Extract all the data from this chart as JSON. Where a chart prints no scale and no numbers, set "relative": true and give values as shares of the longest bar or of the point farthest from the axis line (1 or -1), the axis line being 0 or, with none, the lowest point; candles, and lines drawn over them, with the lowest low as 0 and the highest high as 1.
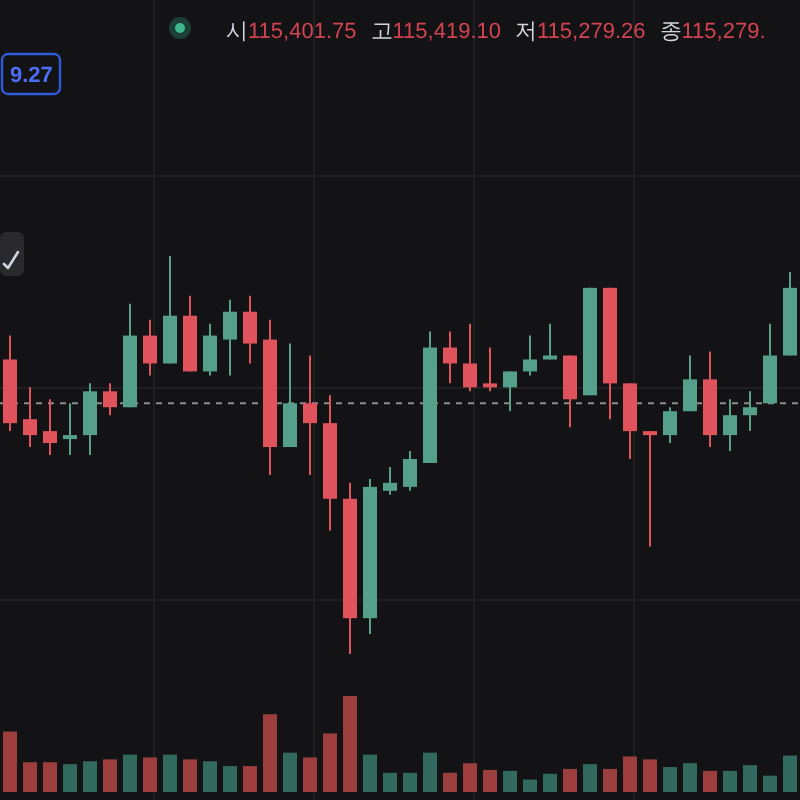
{
  "chart_data": [
    {
      "type": "candlestick",
      "relative": true,
      "grid": true,
      "categories": [
        null,
        null,
        null,
        null,
        null,
        null,
        null,
        null,
        null,
        null,
        null,
        null,
        null,
        null,
        null,
        null,
        null,
        null,
        null,
        null,
        null,
        null,
        null,
        null,
        null,
        null,
        null,
        null,
        null,
        null,
        null,
        null,
        null,
        null,
        null,
        null,
        null,
        null,
        null,
        null
      ],
      "annotations": [
        "시115,401.75",
        "고115,419.10",
        "저115,279.26",
        "종115,279.",
        "9.27"
      ],
      "ref_lines": [
        {
          "axis": "y",
          "value": 0.63,
          "color": "#8c8c8c",
          "line_style": "dashed"
        }
      ],
      "ohlc": [
        [
          0.74,
          0.8,
          0.56,
          0.58
        ],
        [
          0.59,
          0.67,
          0.52,
          0.55
        ],
        [
          0.56,
          0.64,
          0.5,
          0.53
        ],
        [
          0.54,
          0.63,
          0.5,
          0.55
        ],
        [
          0.55,
          0.68,
          0.5,
          0.66
        ],
        [
          0.66,
          0.68,
          0.6,
          0.62
        ],
        [
          0.62,
          0.88,
          0.62,
          0.8
        ],
        [
          0.8,
          0.84,
          0.7,
          0.73
        ],
        [
          0.73,
          1.0,
          0.73,
          0.85
        ],
        [
          0.85,
          0.9,
          0.71,
          0.71
        ],
        [
          0.71,
          0.83,
          0.7,
          0.8
        ],
        [
          0.79,
          0.89,
          0.7,
          0.86
        ],
        [
          0.86,
          0.9,
          0.73,
          0.78
        ],
        [
          0.79,
          0.84,
          0.45,
          0.52
        ],
        [
          0.52,
          0.78,
          0.52,
          0.63
        ],
        [
          0.63,
          0.75,
          0.45,
          0.58
        ],
        [
          0.58,
          0.65,
          0.31,
          0.39
        ],
        [
          0.39,
          0.43,
          0,
          0.09
        ],
        [
          0.09,
          0.44,
          0.05,
          0.42
        ],
        [
          0.41,
          0.47,
          0.4,
          0.43
        ],
        [
          0.42,
          0.51,
          0.41,
          0.49
        ],
        [
          0.48,
          0.81,
          0.48,
          0.77
        ],
        [
          0.77,
          0.81,
          0.68,
          0.73
        ],
        [
          0.73,
          0.83,
          0.66,
          0.67
        ],
        [
          0.68,
          0.77,
          0.66,
          0.67
        ],
        [
          0.67,
          0.71,
          0.61,
          0.71
        ],
        [
          0.71,
          0.8,
          0.7,
          0.74
        ],
        [
          0.74,
          0.83,
          0.74,
          0.75
        ],
        [
          0.75,
          0.75,
          0.57,
          0.64
        ],
        [
          0.65,
          0.92,
          0.65,
          0.92
        ],
        [
          0.92,
          0.92,
          0.59,
          0.68
        ],
        [
          0.68,
          0.68,
          0.49,
          0.56
        ],
        [
          0.56,
          0.56,
          0.27,
          0.55
        ],
        [
          0.55,
          0.62,
          0.53,
          0.61
        ],
        [
          0.61,
          0.75,
          0.61,
          0.69
        ],
        [
          0.69,
          0.76,
          0.52,
          0.55
        ],
        [
          0.55,
          0.64,
          0.51,
          0.6
        ],
        [
          0.6,
          0.66,
          0.56,
          0.62
        ],
        [
          0.63,
          0.83,
          0.63,
          0.75
        ],
        [
          0.75,
          0.96,
          0.75,
          0.92
        ]
      ],
      "colors": [
        "#e0525c",
        "#e0525c",
        "#e0525c",
        "#55a08b",
        "#55a08b",
        "#e0525c",
        "#55a08b",
        "#e0525c",
        "#55a08b",
        "#e0525c",
        "#55a08b",
        "#55a08b",
        "#e0525c",
        "#e0525c",
        "#55a08b",
        "#e0525c",
        "#e0525c",
        "#e0525c",
        "#55a08b",
        "#55a08b",
        "#55a08b",
        "#55a08b",
        "#e0525c",
        "#e0525c",
        "#e0525c",
        "#55a08b",
        "#55a08b",
        "#55a08b",
        "#e0525c",
        "#55a08b",
        "#e0525c",
        "#e0525c",
        "#e0525c",
        "#55a08b",
        "#55a08b",
        "#e0525c",
        "#55a08b",
        "#55a08b",
        "#55a08b",
        "#55a08b"
      ]
    },
    {
      "type": "bar",
      "relative": true,
      "grid": "x",
      "categories": [
        null,
        null,
        null,
        null,
        null,
        null,
        null,
        null,
        null,
        null,
        null,
        null,
        null,
        null,
        null,
        null,
        null,
        null,
        null,
        null,
        null,
        null,
        null,
        null,
        null,
        null,
        null,
        null,
        null,
        null,
        null,
        null,
        null,
        null,
        null,
        null,
        null,
        null,
        null,
        null
      ],
      "values": [
        0.63,
        0.31,
        0.31,
        0.29,
        0.32,
        0.34,
        0.39,
        0.36,
        0.39,
        0.34,
        0.32,
        0.27,
        0.27,
        0.81,
        0.41,
        0.36,
        0.61,
        1,
        0.39,
        0.2,
        0.2,
        0.41,
        0.2,
        0.3,
        0.23,
        0.22,
        0.13,
        0.19,
        0.24,
        0.29,
        0.24,
        0.37,
        0.34,
        0.26,
        0.3,
        0.22,
        0.22,
        0.28,
        0.17,
        0.38
      ],
      "colors": [
        "#9c3e3e",
        "#9c3e3e",
        "#9c3e3e",
        "#31695f",
        "#31695f",
        "#9c3e3e",
        "#31695f",
        "#9c3e3e",
        "#31695f",
        "#9c3e3e",
        "#31695f",
        "#31695f",
        "#9c3e3e",
        "#9c3e3e",
        "#31695f",
        "#9c3e3e",
        "#9c3e3e",
        "#9c3e3e",
        "#31695f",
        "#31695f",
        "#31695f",
        "#31695f",
        "#9c3e3e",
        "#9c3e3e",
        "#9c3e3e",
        "#31695f",
        "#31695f",
        "#31695f",
        "#9c3e3e",
        "#31695f",
        "#9c3e3e",
        "#9c3e3e",
        "#9c3e3e",
        "#31695f",
        "#31695f",
        "#9c3e3e",
        "#31695f",
        "#31695f",
        "#31695f",
        "#31695f"
      ]
    }
  ]
}
